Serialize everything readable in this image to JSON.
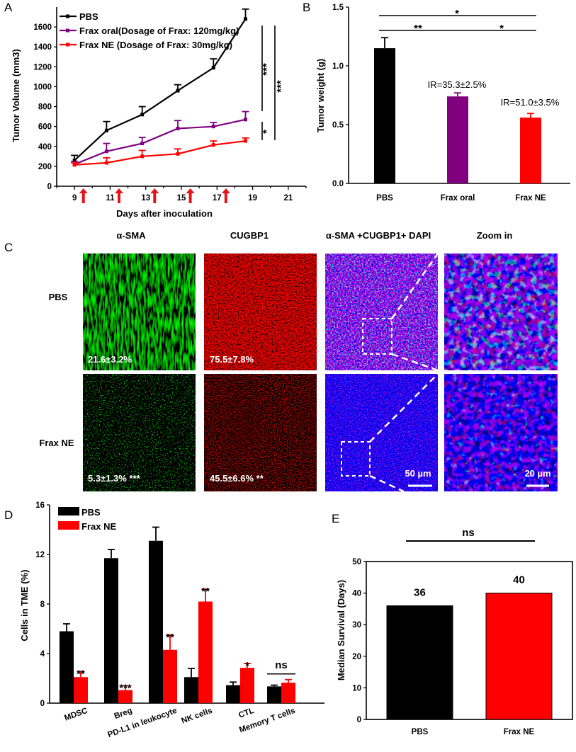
{
  "panels": {
    "a": "A",
    "b": "B",
    "c": "C",
    "d": "D",
    "e": "E"
  },
  "chart_data": [
    {
      "id": "A",
      "type": "line",
      "xlabel": "Days after inoculation",
      "ylabel": "Tumor Volume (mm3)",
      "xlim": [
        8,
        22
      ],
      "ylim": [
        0,
        1800
      ],
      "xticks": [
        9,
        11,
        13,
        15,
        17,
        19,
        21
      ],
      "yticks": [
        0,
        200,
        400,
        600,
        800,
        1000,
        1200,
        1400,
        1600
      ],
      "x": [
        9,
        10.8,
        12.8,
        14.8,
        16.8,
        18.6
      ],
      "injection_days": [
        9.5,
        11.5,
        13.5,
        15.5,
        17.5
      ],
      "series": [
        {
          "name": "PBS",
          "color": "#000000",
          "values": [
            260,
            560,
            720,
            960,
            1190,
            1680
          ],
          "err": [
            50,
            90,
            80,
            60,
            90,
            100
          ]
        },
        {
          "name": "Frax oral(Dosage of Frax: 120mg/kg)",
          "color": "#800080",
          "values": [
            220,
            350,
            430,
            580,
            600,
            670
          ],
          "err": [
            30,
            80,
            60,
            80,
            40,
            80
          ]
        },
        {
          "name": "Frax NE (Dosage of Frax: 30mg/kg)",
          "color": "#ff0000",
          "values": [
            215,
            235,
            300,
            325,
            415,
            455
          ],
          "err": [
            20,
            50,
            60,
            50,
            40,
            30
          ]
        }
      ],
      "significance": [
        "***",
        "***",
        "*"
      ]
    },
    {
      "id": "B",
      "type": "bar",
      "ylabel": "Tumor weight (g)",
      "ylim": [
        0,
        1.5
      ],
      "yticks": [
        "0.0",
        "0.5",
        "1.0",
        "1.5"
      ],
      "categories": [
        "PBS",
        "Frax oral",
        "Frax NE"
      ],
      "values": [
        1.15,
        0.74,
        0.56
      ],
      "err": [
        0.09,
        0.03,
        0.035
      ],
      "colors": [
        "#000000",
        "#800080",
        "#ff0000"
      ],
      "annotations": [
        "IR=35.3±2.5%",
        "IR=51.0±3.5%"
      ],
      "significance": [
        "*",
        "**",
        "*"
      ]
    },
    {
      "id": "D",
      "type": "bar",
      "ylabel": "Cells in TME (%)",
      "ylim": [
        0,
        16
      ],
      "yticks": [
        0,
        4,
        8,
        12,
        16
      ],
      "categories": [
        "MDSC",
        "Breg",
        "PD-L1 in leukocyte",
        "NK cells",
        "CTL",
        "Memory T cells"
      ],
      "series": [
        {
          "name": "PBS",
          "color": "#000000",
          "values": [
            5.8,
            11.7,
            13.1,
            2.1,
            1.45,
            1.35
          ],
          "err": [
            0.6,
            0.7,
            1.1,
            0.7,
            0.25,
            0.1
          ]
        },
        {
          "name": "Frax NE",
          "color": "#ff0000",
          "values": [
            2.1,
            1.05,
            4.3,
            8.2,
            2.85,
            1.65
          ],
          "err": [
            0.45,
            0.35,
            1.2,
            1.0,
            0.35,
            0.25
          ]
        }
      ],
      "significance": [
        "**",
        "***",
        "**",
        "**",
        "*",
        "ns"
      ]
    },
    {
      "id": "E",
      "type": "bar",
      "ylabel": "Median Survival (Days)",
      "ylim": [
        0,
        50
      ],
      "yticks": [
        0,
        10,
        20,
        30,
        40,
        50
      ],
      "categories": [
        "PBS",
        "Frax NE"
      ],
      "values": [
        36,
        40
      ],
      "colors": [
        "#000000",
        "#ff0000"
      ],
      "significance": "ns"
    }
  ],
  "microscopy": {
    "columns": [
      "α-SMA",
      "CUGBP1",
      "α-SMA +CUGBP1+ DAPI",
      "Zoom in"
    ],
    "rows": [
      {
        "label": "PBS",
        "values": [
          "21.6±3.2%",
          "75.5±7.8%"
        ]
      },
      {
        "label": "Frax NE",
        "values": [
          "5.3±1.3% ***",
          "45.5±6.6% **"
        ]
      }
    ],
    "scale_bars": [
      "50 µm",
      "20 µm"
    ]
  }
}
